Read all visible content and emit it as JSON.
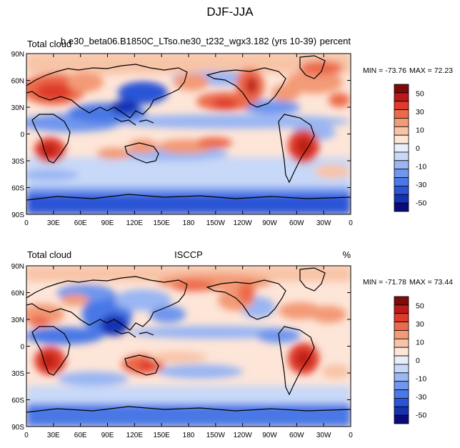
{
  "page_title": "DJF-JJA",
  "chart_data": [
    {
      "type": "heatmap",
      "panel": "top",
      "left_title": "Total cloud",
      "center_title": "b.e30_beta06.B1850C_LTso.ne30_t232_wgx3.182 (yrs 10-39)",
      "right_title": "percent",
      "min_label": "MIN = -73.76",
      "max_label": "MAX =  72.23",
      "xlabel": "",
      "ylabel": "",
      "x_ticks": [
        "0",
        "30E",
        "60E",
        "90E",
        "120E",
        "150E",
        "180",
        "150W",
        "120W",
        "90W",
        "60W",
        "30W",
        "0"
      ],
      "y_ticks": [
        "90N",
        "60N",
        "30N",
        "0",
        "30S",
        "60S",
        "90S"
      ],
      "xlim": [
        0,
        360
      ],
      "ylim": [
        -90,
        90
      ],
      "colorbar_labels": [
        "50",
        "30",
        "10",
        "0",
        "-10",
        "-30",
        "-50"
      ],
      "colorbar_levels": [
        -60,
        -50,
        -40,
        -30,
        -20,
        -10,
        -5,
        0,
        5,
        10,
        20,
        30,
        40,
        50,
        60
      ]
    },
    {
      "type": "heatmap",
      "panel": "bottom",
      "left_title": "Total cloud",
      "center_title": "ISCCP",
      "right_title": "%",
      "min_label": "MIN = -71.78",
      "max_label": "MAX =  73.44",
      "xlabel": "",
      "ylabel": "",
      "x_ticks": [
        "0",
        "30E",
        "60E",
        "90E",
        "120E",
        "150E",
        "180",
        "150W",
        "120W",
        "90W",
        "60W",
        "30W",
        "0"
      ],
      "y_ticks": [
        "90N",
        "60N",
        "30N",
        "0",
        "30S",
        "60S",
        "90S"
      ],
      "xlim": [
        0,
        360
      ],
      "ylim": [
        -90,
        90
      ],
      "colorbar_labels": [
        "50",
        "30",
        "10",
        "0",
        "-10",
        "-30",
        "-50"
      ],
      "colorbar_levels": [
        -60,
        -50,
        -40,
        -30,
        -20,
        -10,
        -5,
        0,
        5,
        10,
        20,
        30,
        40,
        50,
        60
      ]
    }
  ],
  "colors": {
    "scale": [
      "#0a0a7a",
      "#1532b4",
      "#2a55d6",
      "#4a78e6",
      "#7096ee",
      "#9ab6f3",
      "#c7d8f8",
      "#e8eefa",
      "#fde5d8",
      "#f8c4a7",
      "#f39a76",
      "#ec6a4c",
      "#de3b2a",
      "#bb1a18",
      "#7e0b0b"
    ],
    "land_outline": "#000000"
  }
}
